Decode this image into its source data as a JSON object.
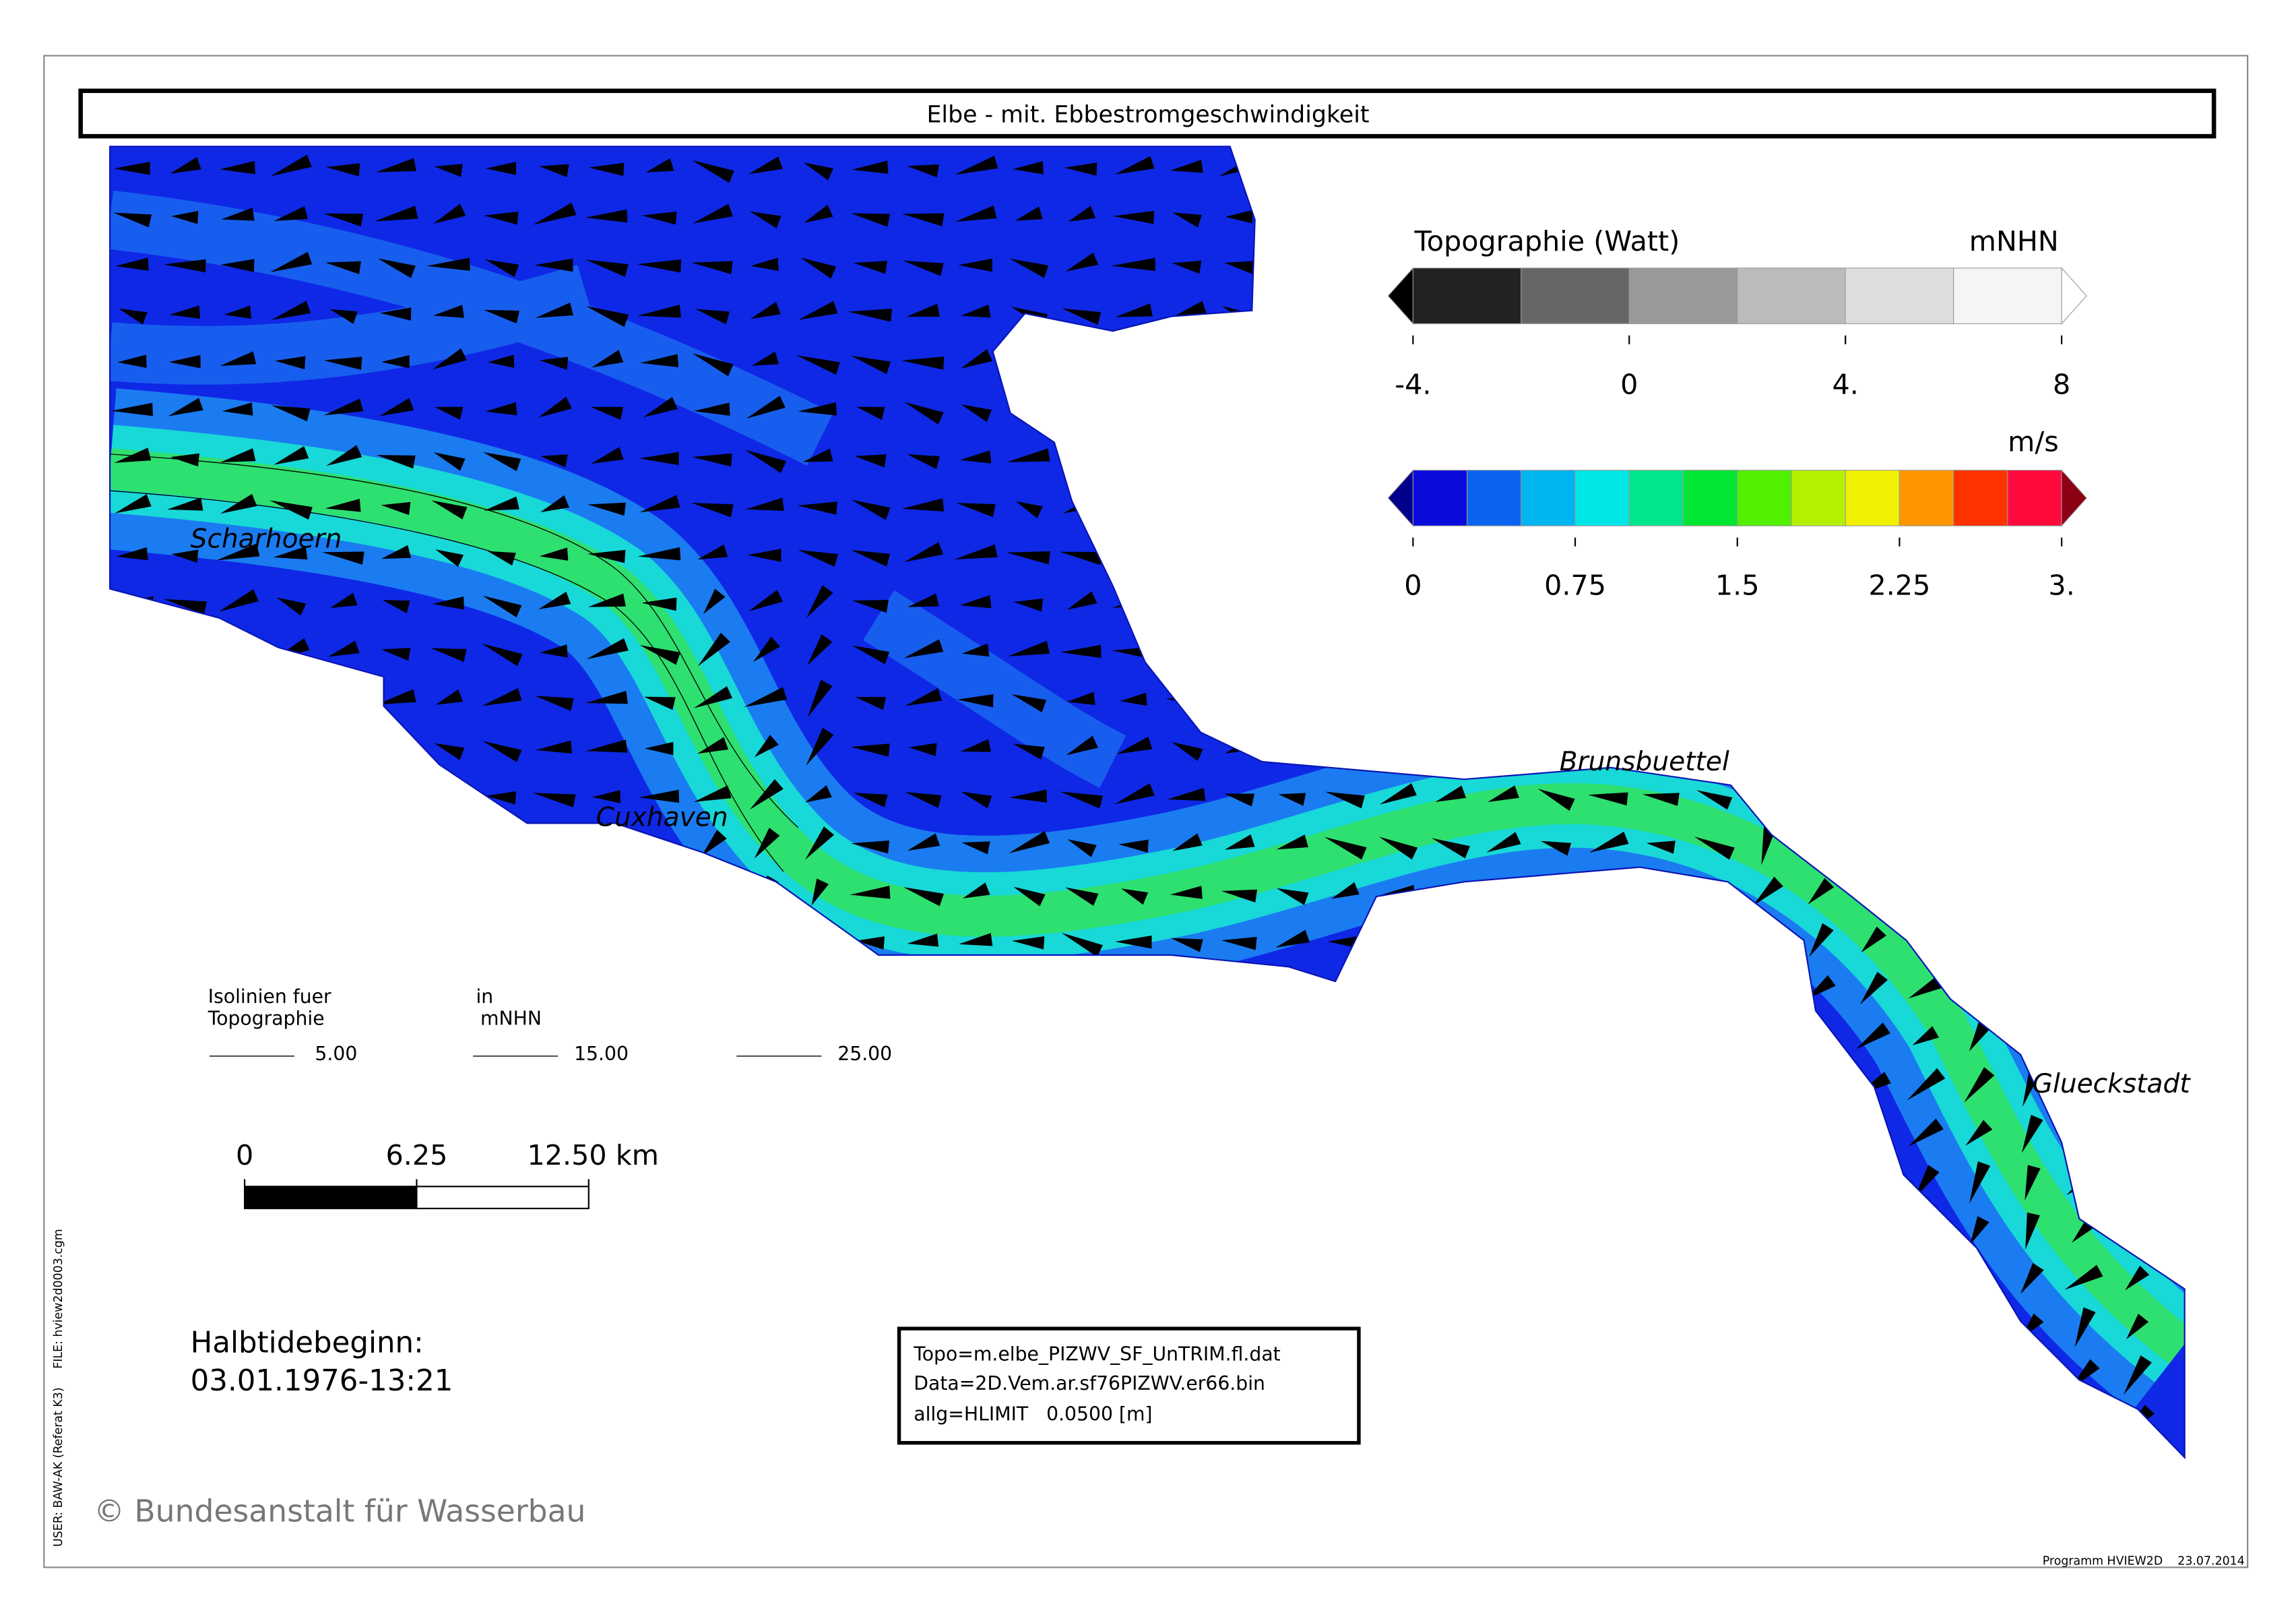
{
  "header": {
    "title": "Elbe - mit. Ebbestromgeschwindigkeit"
  },
  "legend_topography": {
    "title": "Topographie (Watt)",
    "unit": "mNHN",
    "colors": [
      "#222222",
      "#666666",
      "#999999",
      "#bbbbbb",
      "#dddddd",
      "#f5f5f5"
    ],
    "under": "#000000",
    "over": "#ffffff",
    "ticks": [
      {
        "value": -4,
        "label": "-4."
      },
      0,
      {
        "value": 4,
        "label": "4."
      },
      8
    ]
  },
  "legend_speed": {
    "unit": "m/s",
    "colors": [
      "#0a0adc",
      "#0a64f0",
      "#00b4f0",
      "#00e6e6",
      "#00e68c",
      "#00e632",
      "#50f000",
      "#b4f000",
      "#f0f000",
      "#ff9600",
      "#ff3200",
      "#ff0a3c"
    ],
    "under": "#00008c",
    "over": "#8c0014",
    "ticks": [
      0,
      0.75,
      1.5,
      2.25,
      {
        "value": 3,
        "label": "3."
      }
    ]
  },
  "map": {
    "places": [
      "Scharhoern",
      "Cuxhaven",
      "Brunsbuettel",
      "Glueckstadt"
    ]
  },
  "isolines": {
    "title": [
      "Isolinien fuer",
      "Topographie"
    ],
    "unit_title": [
      "in",
      "mNHN"
    ],
    "levels": [
      "5.00",
      "15.00",
      "25.00"
    ]
  },
  "scale_bar": {
    "ticks": [
      0,
      6.25,
      {
        "value": 12.5,
        "label": "12.50 km"
      }
    ]
  },
  "time": {
    "label": "Halbtidebeginn:",
    "value": "03.01.1976-13:21"
  },
  "info": [
    "Topo=m.elbe_PIZWV_SF_UnTRIM.fl.dat",
    "Data=2D.Vem.ar.sf76PIZWV.er66.bin",
    "allg=HLIMIT   0.0500 [m]"
  ],
  "copyright": "© Bundesanstalt für Wasserbau",
  "side_text": "USER: BAW-AK (Referat K3)     FILE: hview2d0003.cgm",
  "footer": "Programm HVIEW2D    23.07.2014"
}
